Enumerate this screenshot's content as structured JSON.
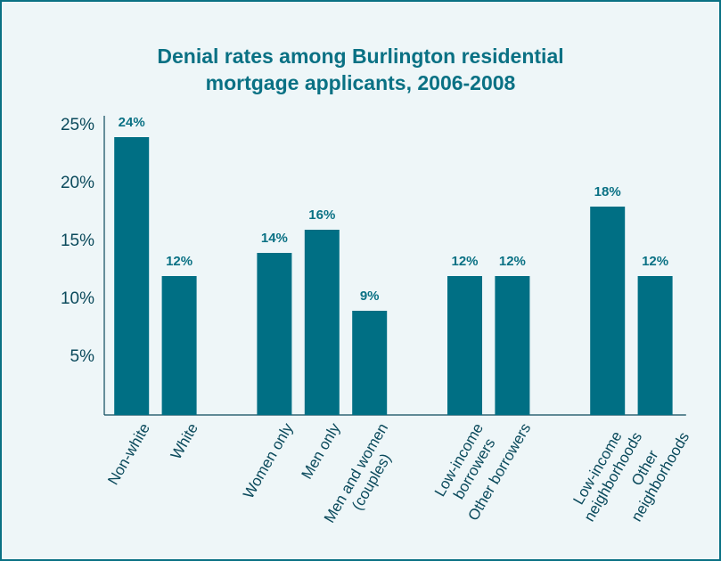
{
  "chart_data": {
    "type": "bar",
    "title": "Denial rates among Burlington residential mortgage applicants, 2006-2008",
    "categories": [
      "Non-white",
      "White",
      null,
      "Women only",
      "Men only",
      "Men and women\n(couples)",
      null,
      "Low-income\nborrowers",
      "Other borrowers",
      null,
      "Low-income\nneighborhoods",
      "Other\nneighborhoods"
    ],
    "values": [
      24,
      12,
      null,
      14,
      16,
      9,
      null,
      12,
      12,
      null,
      18,
      12
    ],
    "value_labels": [
      "24%",
      "12%",
      null,
      "14%",
      "16%",
      "9%",
      null,
      "12%",
      "12%",
      null,
      "18%",
      "12%"
    ],
    "color": "#006f84",
    "ylim": [
      0,
      25
    ],
    "yticks": [
      {
        "value": 5,
        "label": "5%"
      },
      {
        "value": 10,
        "label": "10%"
      },
      {
        "value": 15,
        "label": "15%"
      },
      {
        "value": 20,
        "label": "20%"
      },
      {
        "value": 25,
        "label": "25%"
      }
    ],
    "grid": false
  }
}
